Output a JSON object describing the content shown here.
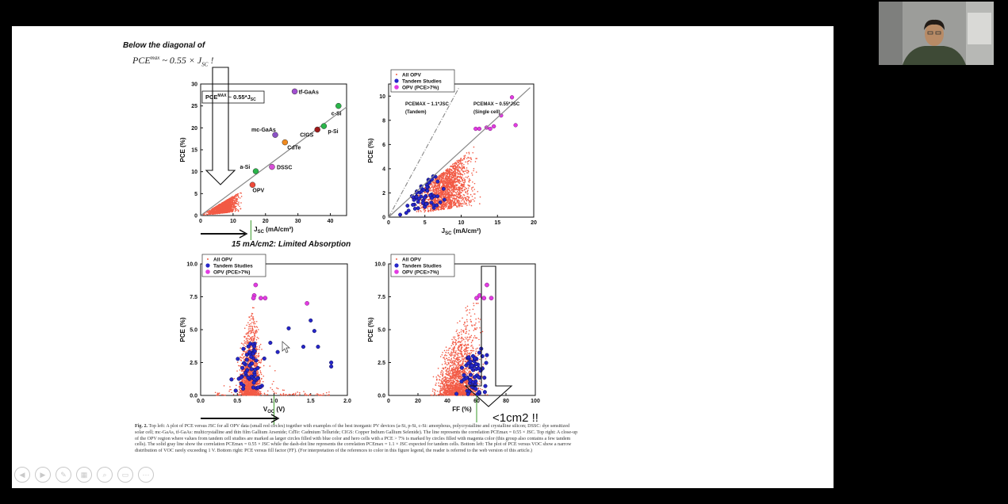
{
  "slide": {
    "header_line1": "Below the diagonal of",
    "header_pce": "PCE",
    "header_max": "max",
    "header_formula_rest": " ~ 0.55 × J",
    "header_sc": "SC",
    "header_excl": " !",
    "annotation_absorption": "15 mA/cm2: Limited Absorption",
    "annotation_area": "<1cm2 !!",
    "caption": {
      "fig_label": "Fig. 2.",
      "text": " Top left: A plot of PCE versus JSC for all OPV data (small red circles) together with examples of the best inorganic PV devices (a-Si, p-Si, c-Si: amorphous, polycrystalline and crystalline silicon; DSSC: dye sensitized solar cell; mc-GaAs, tf-GaAs: multicrystalline and thin film Gallium Arsenide; CdTe: Cadmium Telluride; CIGS: Copper Indium Gallium Selenide). The line represents the correlation PCEmax = 0.55 × JSC. Top right: A close-up of the OPV region where values from tandem cell studies are marked as larger circles filled with blue color and hero cells with a PCE > 7% is marked by circles filled with magenta color (this group also contains a few tandem cells). The solid gray line show the correlation PCEmax = 0.55 × JSC while the dash-dot line represents the correlation PCEmax = 1.1 × JSC expected for tandem cells. Bottom left: The plot of PCE versus VOC show a narrow distribution of VOC rarely exceeding 1 V. Bottom right: PCE versus fill factor (FF). (For interpretation of the references to color in this figure legend, the reader is referred to the web version of this article.)"
    }
  },
  "charts": {
    "top_left": {
      "ylabel": "PCE (%)",
      "xlabel": "J",
      "xlabel_sub": "SC",
      "xlabel_unit": " (mA/cm²)",
      "yticks": [
        "0",
        "5",
        "10",
        "15",
        "20",
        "25",
        "30"
      ],
      "xticks": [
        "0",
        "10",
        "20",
        "30",
        "40"
      ],
      "box_label": "PCE",
      "box_sup": "MAX",
      "box_rest": " ~ 0.55*J",
      "box_sub": "SC"
    },
    "top_right": {
      "ylabel": "PCE (%)",
      "xlabel": "J",
      "xlabel_sub": "SC",
      "xlabel_unit": " (mA/cm²)",
      "yticks": [
        "0",
        "2",
        "4",
        "6",
        "8",
        "10"
      ],
      "xticks": [
        "0",
        "5",
        "10",
        "15",
        "20"
      ],
      "tandem_note": [
        "PCEMAX ~ 1.1*JSC",
        "(Tandem)"
      ],
      "single_note": [
        "PCEMAX ~ 0.55*JSC",
        "(Single cell)"
      ]
    },
    "bottom_left": {
      "ylabel": "PCE (%)",
      "xlabel": "V",
      "xlabel_sub": "OC",
      "xlabel_unit": " (V)",
      "yticks": [
        "0.0",
        "2.5",
        "5.0",
        "7.5",
        "10.0"
      ],
      "xticks": [
        "0.0",
        "0.5",
        "1.0",
        "1.5",
        "2.0"
      ]
    },
    "bottom_right": {
      "ylabel": "PCE (%)",
      "xlabel": "FF (%)",
      "yticks": [
        "0.0",
        "2.5",
        "5.0",
        "7.5",
        "10.0"
      ],
      "xticks": [
        "0",
        "20",
        "40",
        "60",
        "80",
        "100"
      ]
    },
    "legend": [
      "All OPV",
      "Tandem Studies",
      "OPV (PCE>7%)"
    ]
  },
  "chart_data": [
    {
      "type": "scatter",
      "ylabel": "PCE (%)",
      "xlabel": "JSC (mA/cm²)",
      "xlim": [
        0,
        45
      ],
      "ylim": [
        0,
        30
      ],
      "series": [
        {
          "name": "inorganic",
          "points": [
            {
              "label": "tf-GaAs",
              "x": 29,
              "y": 28.3,
              "color": "#a24fd0"
            },
            {
              "label": "c-Si",
              "x": 42.5,
              "y": 25,
              "color": "#2ab54a"
            },
            {
              "label": "p-Si",
              "x": 38,
              "y": 20.4,
              "color": "#2ab54a"
            },
            {
              "label": "CIGS",
              "x": 36,
              "y": 19.6,
              "color": "#9e1a1a"
            },
            {
              "label": "mc-GaAs",
              "x": 23,
              "y": 18.4,
              "color": "#8a52c4"
            },
            {
              "label": "CdTe",
              "x": 26,
              "y": 16.7,
              "color": "#f08a1e"
            },
            {
              "label": "DSSC",
              "x": 22,
              "y": 11.1,
              "color": "#d84fd8"
            },
            {
              "label": "a-Si",
              "x": 17,
              "y": 10.1,
              "color": "#2ab54a"
            },
            {
              "label": "OPV",
              "x": 16,
              "y": 7,
              "color": "#f04a3a"
            }
          ]
        }
      ],
      "line": {
        "slope": 0.55
      }
    },
    {
      "type": "scatter",
      "ylabel": "PCE (%)",
      "xlabel": "JSC (mA/cm²)",
      "xlim": [
        0,
        20
      ],
      "ylim": [
        0,
        11
      ],
      "series": [
        {
          "name": "All OPV",
          "color": "#f25a45"
        },
        {
          "name": "Tandem Studies",
          "color": "#2626c9"
        },
        {
          "name": "OPV (PCE>7%)",
          "color": "#e23be2",
          "points": [
            [
              17,
              9.9
            ],
            [
              15.5,
              8.4
            ],
            [
              17.5,
              7.6
            ],
            [
              14.5,
              7.5
            ],
            [
              13.5,
              7.4
            ],
            [
              12,
              7.3
            ],
            [
              12.5,
              7.3
            ],
            [
              14,
              7.3
            ]
          ]
        }
      ],
      "lines": [
        {
          "slope": 0.55,
          "style": "solid"
        },
        {
          "slope": 1.1,
          "style": "dash-dot"
        }
      ]
    },
    {
      "type": "scatter",
      "ylabel": "PCE (%)",
      "xlabel": "VOC (V)",
      "xlim": [
        0,
        2
      ],
      "ylim": [
        0,
        10
      ],
      "series": [
        {
          "name": "All OPV",
          "color": "#f25a45"
        },
        {
          "name": "Tandem Studies",
          "color": "#2626c9"
        },
        {
          "name": "OPV (PCE>7%)",
          "color": "#e23be2",
          "points": [
            [
              0.75,
              8.4
            ],
            [
              0.73,
              7.6
            ],
            [
              0.72,
              7.4
            ],
            [
              0.82,
              7.4
            ],
            [
              0.88,
              7.4
            ],
            [
              1.45,
              7.0
            ]
          ]
        }
      ]
    },
    {
      "type": "scatter",
      "ylabel": "PCE (%)",
      "xlabel": "FF (%)",
      "xlim": [
        0,
        100
      ],
      "ylim": [
        0,
        10
      ],
      "series": [
        {
          "name": "All OPV",
          "color": "#f25a45"
        },
        {
          "name": "Tandem Studies",
          "color": "#2626c9"
        },
        {
          "name": "OPV (PCE>7%)",
          "color": "#e23be2",
          "points": [
            [
              67,
              8.4
            ],
            [
              62,
              7.6
            ],
            [
              60,
              7.4
            ],
            [
              65,
              7.4
            ],
            [
              70,
              7.4
            ]
          ]
        }
      ]
    }
  ]
}
